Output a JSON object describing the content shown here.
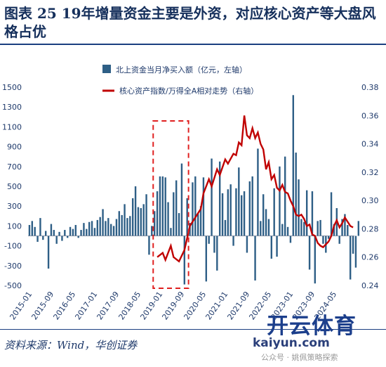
{
  "figure": {
    "title": "图表 25 19年增量资金主要是外资，对应核心资产等大盘风格占优",
    "source": "资料来源：Wind，华创证券"
  },
  "watermark": {
    "brand": "开云体育",
    "site": "kaiyun.com",
    "account": "公众号 · 姚佩策略探索"
  },
  "colors": {
    "bars": "#2e5f86",
    "line": "#c00000",
    "box": "#e02020",
    "text": "#1f3a6b"
  },
  "chart_data": {
    "type": "bar",
    "legend_placement": "top-center",
    "grid": false,
    "x": {
      "tick_labels": [
        "2015-01",
        "2015-09",
        "2016-05",
        "2017-01",
        "2017-09",
        "2018-05",
        "2019-01",
        "2019-09",
        "2020-05",
        "2021-01",
        "2021-09",
        "2022-05",
        "2023-01",
        "2023-09",
        "2024-05"
      ],
      "months": 120
    },
    "ylim_left": [
      -500,
      1500
    ],
    "yticks_left": [
      -500,
      -300,
      -100,
      100,
      300,
      500,
      700,
      900,
      1100,
      1300,
      1500
    ],
    "ylim_right": [
      0.24,
      0.38
    ],
    "yticks_right": [
      "0.24",
      "0.26",
      "0.28",
      "0.30",
      "0.32",
      "0.34",
      "0.36",
      "0.38"
    ],
    "bar_series": {
      "name": "北上资金当月净买入额（亿元，左轴）",
      "values": [
        110,
        150,
        90,
        -60,
        180,
        -40,
        50,
        -330,
        120,
        60,
        -80,
        40,
        -50,
        60,
        -20,
        90,
        70,
        110,
        -20,
        60,
        130,
        70,
        140,
        150,
        80,
        160,
        190,
        270,
        150,
        180,
        120,
        100,
        170,
        250,
        210,
        320,
        180,
        200,
        380,
        500,
        290,
        280,
        320,
        420,
        -190,
        100,
        250,
        450,
        600,
        600,
        590,
        340,
        80,
        440,
        560,
        230,
        730,
        -490,
        380,
        130,
        540,
        600,
        220,
        300,
        590,
        -460,
        -80,
        780,
        -170,
        -350,
        750,
        430,
        160,
        470,
        520,
        -100,
        480,
        690,
        410,
        450,
        -170,
        550,
        600,
        -450,
        880,
        150,
        420,
        270,
        170,
        -230,
        480,
        -210,
        700,
        120,
        800,
        90,
        -70,
        1420,
        840,
        570,
        170,
        140,
        460,
        -340,
        450,
        -480,
        150,
        160,
        -80,
        -170,
        -30,
        440,
        120,
        280,
        -80,
        170,
        220,
        110,
        -440,
        -180,
        -320,
        150
      ],
      "highlight_range": [
        "2018-12",
        "2019-10"
      ]
    },
    "line_series": {
      "name": "核心资产指数/万得全A相对走势（右轴）",
      "points": [
        [
          47,
          0.26
        ],
        [
          49,
          0.263
        ],
        [
          50,
          0.258
        ],
        [
          52,
          0.268
        ],
        [
          53,
          0.26
        ],
        [
          55,
          0.257
        ],
        [
          57,
          0.265
        ],
        [
          59,
          0.282
        ],
        [
          61,
          0.288
        ],
        [
          63,
          0.294
        ],
        [
          64,
          0.305
        ],
        [
          66,
          0.315
        ],
        [
          67,
          0.31
        ],
        [
          69,
          0.322
        ],
        [
          70,
          0.318
        ],
        [
          72,
          0.329
        ],
        [
          73,
          0.326
        ],
        [
          75,
          0.333
        ],
        [
          76,
          0.332
        ],
        [
          77,
          0.341
        ],
        [
          78,
          0.339
        ],
        [
          79,
          0.36
        ],
        [
          80,
          0.346
        ],
        [
          81,
          0.344
        ],
        [
          82,
          0.351
        ],
        [
          83,
          0.344
        ],
        [
          84,
          0.348
        ],
        [
          85,
          0.34
        ],
        [
          86,
          0.336
        ],
        [
          87,
          0.322
        ],
        [
          88,
          0.327
        ],
        [
          89,
          0.315
        ],
        [
          90,
          0.318
        ],
        [
          91,
          0.309
        ],
        [
          92,
          0.307
        ],
        [
          93,
          0.311
        ],
        [
          94,
          0.306
        ],
        [
          95,
          0.305
        ],
        [
          96,
          0.3
        ],
        [
          97,
          0.296
        ],
        [
          98,
          0.29
        ],
        [
          99,
          0.289
        ],
        [
          100,
          0.29
        ],
        [
          101,
          0.287
        ],
        [
          102,
          0.282
        ],
        [
          103,
          0.283
        ],
        [
          104,
          0.276
        ],
        [
          105,
          0.275
        ],
        [
          106,
          0.27
        ],
        [
          107,
          0.268
        ],
        [
          108,
          0.267
        ],
        [
          110,
          0.271
        ],
        [
          111,
          0.275
        ],
        [
          112,
          0.282
        ],
        [
          113,
          0.286
        ],
        [
          114,
          0.281
        ],
        [
          115,
          0.284
        ],
        [
          116,
          0.288
        ],
        [
          117,
          0.285
        ],
        [
          118,
          0.282
        ],
        [
          119,
          0.281
        ]
      ]
    }
  }
}
